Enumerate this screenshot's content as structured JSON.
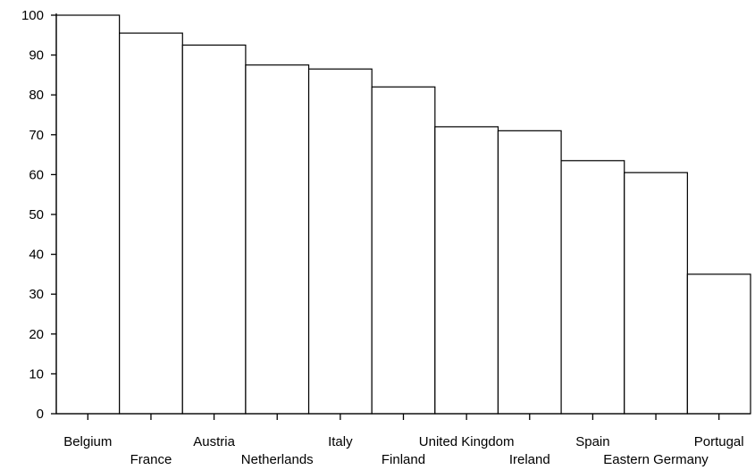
{
  "chart_data": {
    "type": "bar",
    "categories": [
      "Belgium",
      "France",
      "Austria",
      "Netherlands",
      "Italy",
      "Finland",
      "United Kingdom",
      "Ireland",
      "Spain",
      "Eastern Germany",
      "Portugal"
    ],
    "values": [
      100,
      95.5,
      92.5,
      87.5,
      86.5,
      82,
      72,
      71,
      63.5,
      60.5,
      35
    ],
    "title": "",
    "xlabel": "",
    "ylabel": "",
    "ylim": [
      0,
      100
    ],
    "yticks": [
      0,
      10,
      20,
      30,
      40,
      50,
      60,
      70,
      80,
      90,
      100
    ],
    "grid": false,
    "legend": "none",
    "bar_fill": "#ffffff",
    "bar_stroke": "#000000"
  }
}
